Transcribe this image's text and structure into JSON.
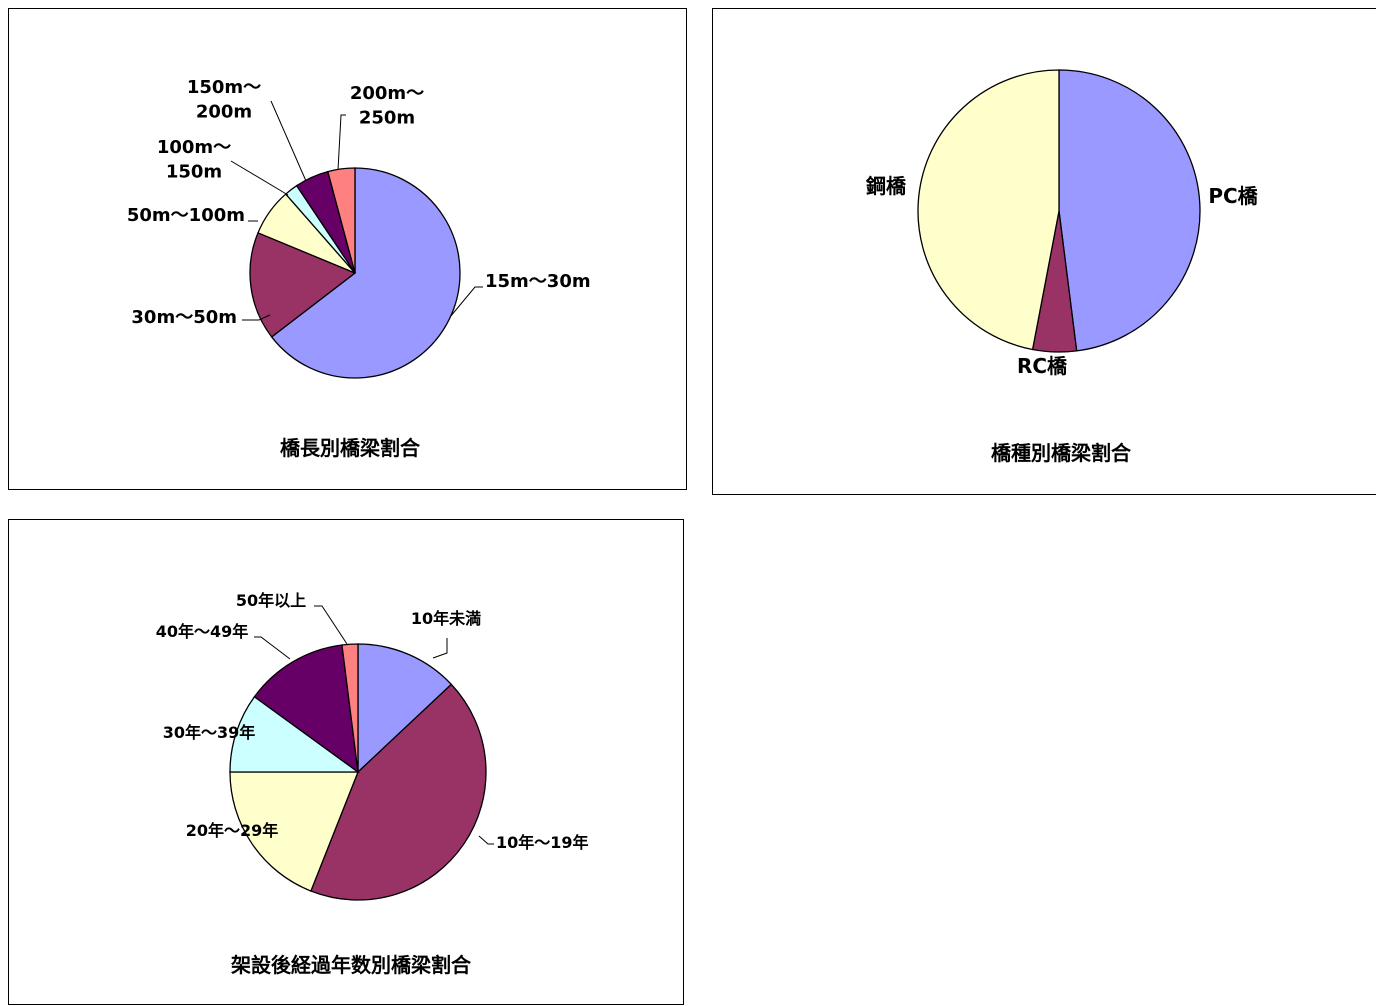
{
  "chart_data": [
    {
      "type": "pie",
      "title": "橋長別橋梁割合",
      "categories": [
        "15m～30m",
        "30m～50m",
        "50m～100m",
        "100m～150m",
        "150m～200m",
        "200m～250m"
      ],
      "label_lines": [
        [
          "15m～30m"
        ],
        [
          "30m～50m"
        ],
        [
          "50m～100m"
        ],
        [
          "100m～",
          "150m"
        ],
        [
          "150m～",
          "200m"
        ],
        [
          "200m～",
          "250m"
        ]
      ],
      "values": [
        62,
        16,
        7,
        2,
        5,
        4
      ],
      "colors": [
        "#9999ff",
        "#993366",
        "#ffffcc",
        "#ccffff",
        "#660066",
        "#ff8080"
      ]
    },
    {
      "type": "pie",
      "title": "橋種別橋梁割合",
      "categories": [
        "PC橋",
        "RC橋",
        "鋼橋"
      ],
      "label_lines": [
        [
          "PC橋"
        ],
        [
          "RC橋"
        ],
        [
          "鋼橋"
        ]
      ],
      "values": [
        48,
        5,
        47
      ],
      "colors": [
        "#9999ff",
        "#993366",
        "#ffffcc"
      ]
    },
    {
      "type": "pie",
      "title": "架設後経過年数別橋梁割合",
      "categories": [
        "10年未満",
        "10年～19年",
        "20年～29年",
        "30年～39年",
        "40年～49年",
        "50年以上"
      ],
      "label_lines": [
        [
          "10年未満"
        ],
        [
          "10年～19年"
        ],
        [
          "20年～29年"
        ],
        [
          "30年～39年"
        ],
        [
          "40年～49年"
        ],
        [
          "50年以上"
        ]
      ],
      "values": [
        13,
        43,
        19,
        10,
        13,
        2
      ],
      "colors": [
        "#9999ff",
        "#993366",
        "#ffffcc",
        "#ccffff",
        "#660066",
        "#ff8080"
      ]
    }
  ]
}
